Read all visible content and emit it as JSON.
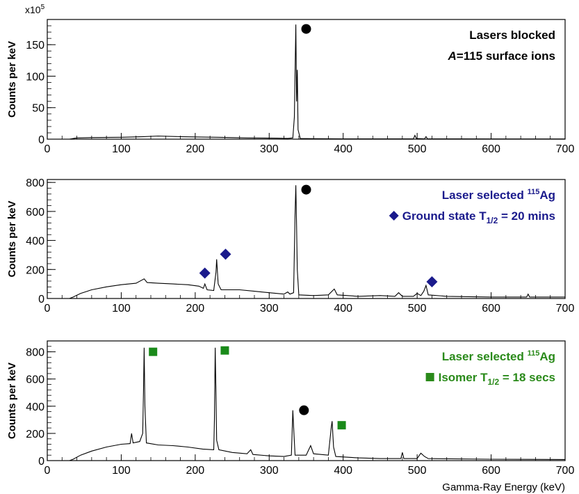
{
  "chart_data": [
    {
      "type": "line",
      "panel": "top",
      "ylabel": "Counts per keV",
      "y_multiplier": "x10",
      "y_multiplier_exp": "5",
      "xlim": [
        0,
        700
      ],
      "ylim": [
        0,
        190
      ],
      "xticks": [
        0,
        100,
        200,
        300,
        400,
        500,
        600,
        700
      ],
      "yticks": [
        0,
        50,
        100,
        150
      ],
      "legend": [
        {
          "text": "Lasers blocked",
          "color": "#000000"
        },
        {
          "text": "A=115 surface ions",
          "italic_prefix": "A",
          "rest": "=115 surface ions",
          "color": "#000000"
        }
      ],
      "series": [
        {
          "color": "#000000",
          "points": [
            [
              30,
              0
            ],
            [
              35,
              1
            ],
            [
              40,
              2
            ],
            [
              60,
              2.5
            ],
            [
              100,
              3
            ],
            [
              130,
              4
            ],
            [
              150,
              5
            ],
            [
              180,
              4
            ],
            [
              200,
              3.5
            ],
            [
              230,
              3
            ],
            [
              270,
              2
            ],
            [
              310,
              1.5
            ],
            [
              325,
              1.2
            ],
            [
              332,
              2
            ],
            [
              334,
              35
            ],
            [
              336,
              182
            ],
            [
              337,
              60
            ],
            [
              338,
              110
            ],
            [
              339,
              15
            ],
            [
              342,
              1
            ],
            [
              360,
              0.8
            ],
            [
              400,
              0.6
            ],
            [
              450,
              0.5
            ],
            [
              495,
              0.6
            ],
            [
              497,
              6
            ],
            [
              499,
              1
            ],
            [
              510,
              0.5
            ],
            [
              512,
              4
            ],
            [
              514,
              0.5
            ],
            [
              560,
              0.4
            ],
            [
              620,
              0.3
            ],
            [
              700,
              0.3
            ]
          ]
        }
      ],
      "markers": [
        {
          "shape": "circle",
          "x": 350,
          "y": 175,
          "color": "#000000"
        }
      ]
    },
    {
      "type": "line",
      "panel": "middle",
      "ylabel": "Counts per keV",
      "xlim": [
        0,
        700
      ],
      "ylim": [
        0,
        820
      ],
      "xticks": [
        0,
        100,
        200,
        300,
        400,
        500,
        600,
        700
      ],
      "yticks": [
        0,
        200,
        400,
        600,
        800
      ],
      "legend": [
        {
          "text": "Laser selected ",
          "sup": "115",
          "rest": "Ag",
          "color": "#1a1a8c"
        },
        {
          "text": "Ground state T",
          "sub": "1/2",
          "rest": " = 20 mins",
          "color": "#1a1a8c",
          "marker": "diamond"
        }
      ],
      "series": [
        {
          "color": "#000000",
          "points": [
            [
              30,
              0
            ],
            [
              35,
              10
            ],
            [
              45,
              35
            ],
            [
              60,
              60
            ],
            [
              80,
              80
            ],
            [
              100,
              95
            ],
            [
              120,
              105
            ],
            [
              131,
              135
            ],
            [
              135,
              110
            ],
            [
              150,
              105
            ],
            [
              170,
              100
            ],
            [
              190,
              95
            ],
            [
              205,
              85
            ],
            [
              211,
              70
            ],
            [
              213,
              100
            ],
            [
              216,
              60
            ],
            [
              225,
              55
            ],
            [
              228,
              180
            ],
            [
              229,
              270
            ],
            [
              231,
              100
            ],
            [
              235,
              60
            ],
            [
              240,
              60
            ],
            [
              260,
              60
            ],
            [
              280,
              50
            ],
            [
              300,
              40
            ],
            [
              320,
              30
            ],
            [
              325,
              45
            ],
            [
              328,
              30
            ],
            [
              333,
              40
            ],
            [
              335,
              580
            ],
            [
              336,
              780
            ],
            [
              337,
              500
            ],
            [
              338,
              200
            ],
            [
              340,
              25
            ],
            [
              360,
              20
            ],
            [
              380,
              25
            ],
            [
              388,
              65
            ],
            [
              392,
              25
            ],
            [
              420,
              15
            ],
            [
              450,
              20
            ],
            [
              470,
              15
            ],
            [
              475,
              40
            ],
            [
              480,
              15
            ],
            [
              495,
              15
            ],
            [
              500,
              35
            ],
            [
              505,
              20
            ],
            [
              509,
              50
            ],
            [
              512,
              90
            ],
            [
              515,
              25
            ],
            [
              540,
              15
            ],
            [
              600,
              10
            ],
            [
              648,
              10
            ],
            [
              650,
              30
            ],
            [
              652,
              10
            ],
            [
              700,
              10
            ]
          ]
        }
      ],
      "markers": [
        {
          "shape": "circle",
          "x": 350,
          "y": 750,
          "color": "#000000"
        },
        {
          "shape": "diamond",
          "x": 213,
          "y": 175,
          "color": "#1a1a8c"
        },
        {
          "shape": "diamond",
          "x": 241,
          "y": 305,
          "color": "#1a1a8c"
        },
        {
          "shape": "diamond",
          "x": 520,
          "y": 115,
          "color": "#1a1a8c"
        }
      ]
    },
    {
      "type": "line",
      "panel": "bottom",
      "ylabel": "Counts per keV",
      "xlabel": "Gamma-Ray Energy (keV)",
      "xlim": [
        0,
        700
      ],
      "ylim": [
        0,
        880
      ],
      "xticks": [
        0,
        100,
        200,
        300,
        400,
        500,
        600,
        700
      ],
      "yticks": [
        0,
        200,
        400,
        600,
        800
      ],
      "legend": [
        {
          "text": "Laser selected ",
          "sup": "115",
          "rest": "Ag",
          "color": "#2a8a1a"
        },
        {
          "text": "Isomer T",
          "sub": "1/2",
          "rest": " = 18 secs",
          "color": "#2a8a1a",
          "marker": "square"
        }
      ],
      "series": [
        {
          "color": "#000000",
          "points": [
            [
              30,
              0
            ],
            [
              35,
              10
            ],
            [
              45,
              40
            ],
            [
              60,
              70
            ],
            [
              80,
              100
            ],
            [
              100,
              120
            ],
            [
              112,
              125
            ],
            [
              114,
              200
            ],
            [
              116,
              130
            ],
            [
              125,
              140
            ],
            [
              129,
              200
            ],
            [
              130,
              500
            ],
            [
              131,
              830
            ],
            [
              132,
              400
            ],
            [
              134,
              130
            ],
            [
              150,
              115
            ],
            [
              170,
              110
            ],
            [
              190,
              100
            ],
            [
              210,
              85
            ],
            [
              225,
              80
            ],
            [
              226,
              300
            ],
            [
              227,
              830
            ],
            [
              228,
              500
            ],
            [
              229,
              150
            ],
            [
              232,
              80
            ],
            [
              250,
              60
            ],
            [
              270,
              50
            ],
            [
              275,
              80
            ],
            [
              278,
              45
            ],
            [
              300,
              35
            ],
            [
              320,
              30
            ],
            [
              330,
              40
            ],
            [
              332,
              370
            ],
            [
              333,
              250
            ],
            [
              335,
              40
            ],
            [
              350,
              40
            ],
            [
              356,
              110
            ],
            [
              360,
              50
            ],
            [
              380,
              40
            ],
            [
              384,
              250
            ],
            [
              385,
              290
            ],
            [
              387,
              100
            ],
            [
              390,
              30
            ],
            [
              420,
              20
            ],
            [
              450,
              15
            ],
            [
              478,
              15
            ],
            [
              480,
              60
            ],
            [
              482,
              15
            ],
            [
              500,
              15
            ],
            [
              505,
              55
            ],
            [
              510,
              30
            ],
            [
              515,
              15
            ],
            [
              600,
              10
            ],
            [
              700,
              8
            ]
          ]
        }
      ],
      "markers": [
        {
          "shape": "circle",
          "x": 347,
          "y": 370,
          "color": "#000000"
        },
        {
          "shape": "square",
          "x": 143,
          "y": 800,
          "color": "#1a8a1a"
        },
        {
          "shape": "square",
          "x": 240,
          "y": 810,
          "color": "#1a8a1a"
        },
        {
          "shape": "square",
          "x": 398,
          "y": 260,
          "color": "#1a8a1a"
        }
      ]
    }
  ]
}
